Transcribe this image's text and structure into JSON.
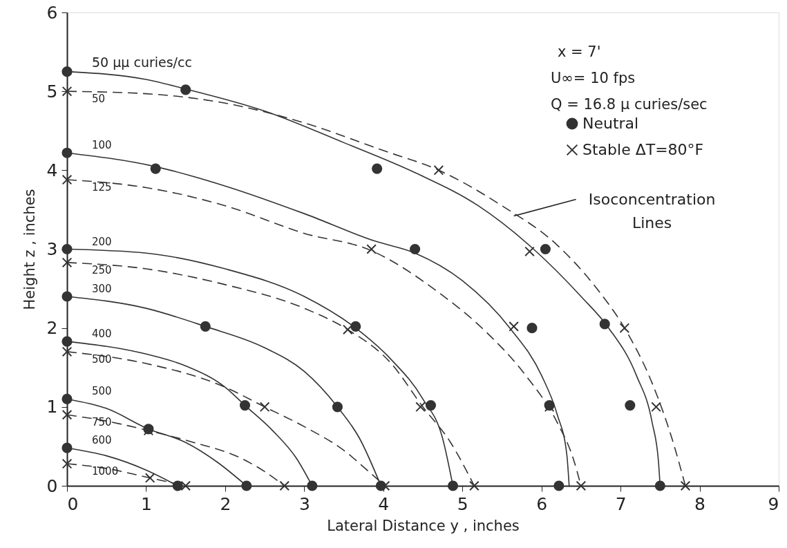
{
  "chart_data": {
    "type": "line",
    "xlabel": "Lateral  Distance  y , inches",
    "ylabel": "Height  z , inches",
    "xlim": [
      0,
      9
    ],
    "ylim": [
      0,
      6
    ],
    "xticks": [
      0,
      1,
      2,
      3,
      4,
      5,
      6,
      7,
      8,
      9
    ],
    "yticks": [
      0,
      1,
      2,
      3,
      4,
      5,
      6
    ],
    "grid": false,
    "legend": "top right",
    "series": [
      {
        "name": "Neutral",
        "type": "scatter",
        "marker": "circle",
        "color": "#333333",
        "x": [
          0,
          0,
          0,
          0,
          0,
          0,
          0,
          1.5,
          1.12,
          3.92,
          4.4,
          6.05,
          1.75,
          3.65,
          5.88,
          6.8,
          2.25,
          3.42,
          4.6,
          6.1,
          7.12,
          1.03,
          1.4,
          2.27,
          3.1,
          3.97,
          4.88,
          6.22,
          7.5
        ],
        "values": [
          5.25,
          4.22,
          3.0,
          2.4,
          1.83,
          1.1,
          0.48,
          5.02,
          4.02,
          4.02,
          3.0,
          3.0,
          2.02,
          2.02,
          2.0,
          2.05,
          1.02,
          1.0,
          1.02,
          1.02,
          1.02,
          0.72,
          0,
          0,
          0,
          0,
          0,
          0,
          0
        ]
      },
      {
        "name": "Stable    ΔT=80°F",
        "type": "scatter",
        "marker": "cross",
        "color": "#333333",
        "x": [
          0,
          0,
          0,
          0,
          0,
          0,
          4.7,
          3.85,
          5.85,
          3.55,
          5.65,
          7.05,
          2.5,
          4.47,
          6.1,
          7.45,
          1.03,
          1.05,
          1.5,
          2.75,
          4.02,
          5.15,
          6.5,
          7.82
        ],
        "values": [
          5.0,
          3.88,
          2.83,
          1.7,
          0.9,
          0.28,
          4.0,
          3.0,
          2.97,
          1.98,
          2.02,
          2.0,
          1.0,
          1.0,
          1.0,
          1.0,
          0.7,
          0.1,
          0,
          0,
          0,
          0,
          0,
          0
        ]
      },
      {
        "name": "50 μμ curies/cc",
        "line_style": "solid",
        "color": "#333333",
        "x": [
          0,
          1,
          1.5,
          2.5,
          3.5,
          4.4,
          5.2,
          5.9,
          6.5,
          6.85,
          7.2,
          7.4,
          7.48,
          7.5
        ],
        "values": [
          5.25,
          5.15,
          5.03,
          4.75,
          4.35,
          3.97,
          3.55,
          3.0,
          2.4,
          2.0,
          1.4,
          0.8,
          0.3,
          0
        ]
      },
      {
        "name": "50",
        "line_style": "dashed",
        "color": "#333333",
        "x": [
          0,
          1,
          2,
          3,
          4,
          4.7,
          5.5,
          6.2,
          6.7,
          7.05,
          7.4,
          7.65,
          7.82
        ],
        "values": [
          5.0,
          4.97,
          4.85,
          4.6,
          4.25,
          4.0,
          3.55,
          3.05,
          2.5,
          2.0,
          1.3,
          0.6,
          0
        ]
      },
      {
        "name": "100",
        "line_style": "solid",
        "color": "#333333",
        "x": [
          0,
          1.1,
          2,
          3,
          3.9,
          4.4,
          5.0,
          5.6,
          6.0,
          6.2,
          6.32,
          6.35
        ],
        "values": [
          4.22,
          4.05,
          3.8,
          3.45,
          3.1,
          2.95,
          2.6,
          2.0,
          1.4,
          0.9,
          0.4,
          0
        ]
      },
      {
        "name": "125",
        "line_style": "dashed",
        "color": "#333333",
        "x": [
          0,
          1,
          2,
          3,
          3.85,
          4.7,
          5.3,
          5.8,
          6.2,
          6.4,
          6.5
        ],
        "values": [
          3.88,
          3.78,
          3.55,
          3.2,
          2.98,
          2.45,
          1.95,
          1.4,
          0.8,
          0.35,
          0
        ]
      },
      {
        "name": "200",
        "line_style": "solid",
        "color": "#333333",
        "x": [
          0,
          1,
          2,
          3,
          3.65,
          4.1,
          4.5,
          4.75,
          4.88
        ],
        "values": [
          3.0,
          2.95,
          2.75,
          2.4,
          2.0,
          1.6,
          1.1,
          0.6,
          0
        ]
      },
      {
        "name": "250",
        "line_style": "dashed",
        "color": "#333333",
        "x": [
          0,
          1,
          2,
          3,
          3.55,
          4.1,
          4.5,
          4.85,
          5.15
        ],
        "values": [
          2.83,
          2.75,
          2.55,
          2.25,
          1.98,
          1.55,
          1.0,
          0.55,
          0
        ]
      },
      {
        "name": "300",
        "line_style": "solid",
        "color": "#333333",
        "x": [
          0,
          1,
          1.75,
          2.5,
          3,
          3.42,
          3.7,
          3.97
        ],
        "values": [
          2.4,
          2.25,
          2.02,
          1.75,
          1.45,
          1.0,
          0.6,
          0
        ]
      },
      {
        "name": "400",
        "line_style": "solid",
        "color": "#333333",
        "x": [
          0,
          1,
          1.5,
          2,
          2.25,
          2.6,
          2.9,
          3.1
        ],
        "values": [
          1.83,
          1.67,
          1.52,
          1.25,
          1.02,
          0.7,
          0.35,
          0
        ]
      },
      {
        "name": "500",
        "line_style": "dashed",
        "color": "#333333",
        "x": [
          0,
          1,
          2,
          2.5,
          3,
          3.5,
          3.85,
          4.02
        ],
        "values": [
          1.7,
          1.55,
          1.25,
          1.0,
          0.75,
          0.45,
          0.15,
          0
        ]
      },
      {
        "name": "500",
        "line_style": "solid",
        "color": "#333333",
        "x": [
          0,
          0.5,
          1.03,
          1.5,
          1.9,
          2.27
        ],
        "values": [
          1.1,
          0.98,
          0.72,
          0.55,
          0.3,
          0
        ]
      },
      {
        "name": "750",
        "line_style": "dashed",
        "color": "#333333",
        "x": [
          0,
          0.5,
          1.03,
          1.6,
          2.2,
          2.5,
          2.75
        ],
        "values": [
          0.9,
          0.82,
          0.7,
          0.55,
          0.35,
          0.18,
          0
        ]
      },
      {
        "name": "600",
        "line_style": "solid",
        "color": "#333333",
        "x": [
          0,
          0.5,
          1.0,
          1.4
        ],
        "values": [
          0.48,
          0.38,
          0.2,
          0
        ]
      },
      {
        "name": "1000",
        "line_style": "dashed",
        "color": "#333333",
        "x": [
          0,
          0.5,
          1.05,
          1.5
        ],
        "values": [
          0.28,
          0.22,
          0.1,
          0
        ]
      }
    ],
    "annotations": [
      "x  = 7'",
      "U∞= 10 fps",
      "Q  = 16.8 μ curies/sec",
      {
        "text": "Isoconcentration Lines",
        "x": 5.65,
        "y": 3.42
      }
    ]
  }
}
